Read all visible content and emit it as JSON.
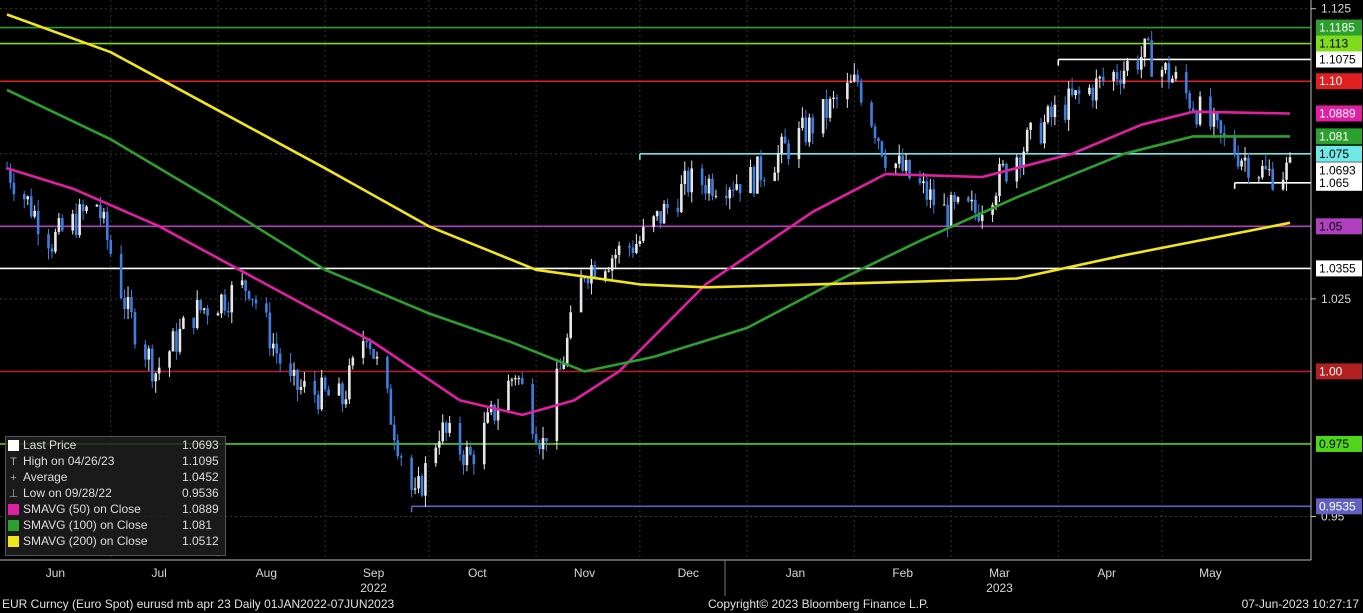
{
  "chart_data": {
    "type": "candlestick",
    "title": "",
    "xlabel": "",
    "ylabel": "",
    "ylim": [
      0.935,
      1.128
    ],
    "y_ticks": [
      "1.125",
      "1.025",
      "0.95"
    ],
    "x_ticks": [
      "Jun",
      "Jul",
      "Aug",
      "Sep",
      "Oct",
      "Nov",
      "Dec",
      "Jan",
      "Feb",
      "Mar",
      "Apr",
      "May"
    ],
    "year_labels": [
      "2022",
      "2023"
    ],
    "price_path": [
      [
        "2022-06-01",
        1.07
      ],
      [
        "2022-06-14",
        1.045
      ],
      [
        "2022-06-27",
        1.058
      ],
      [
        "2022-07-06",
        1.02
      ],
      [
        "2022-07-14",
        1.0
      ],
      [
        "2022-07-25",
        1.02
      ],
      [
        "2022-08-10",
        1.03
      ],
      [
        "2022-08-22",
        0.995
      ],
      [
        "2022-09-06",
        0.99
      ],
      [
        "2022-09-13",
        1.015
      ],
      [
        "2022-09-27",
        0.955
      ],
      [
        "2022-10-04",
        0.98
      ],
      [
        "2022-10-13",
        0.97
      ],
      [
        "2022-10-26",
        1.0
      ],
      [
        "2022-11-03",
        0.975
      ],
      [
        "2022-11-15",
        1.035
      ],
      [
        "2022-12-01",
        1.045
      ],
      [
        "2022-12-15",
        1.065
      ],
      [
        "2023-01-02",
        1.066
      ],
      [
        "2023-01-20",
        1.085
      ],
      [
        "2023-02-02",
        1.1
      ],
      [
        "2023-02-10",
        1.075
      ],
      [
        "2023-02-27",
        1.055
      ],
      [
        "2023-03-08",
        1.055
      ],
      [
        "2023-03-20",
        1.075
      ],
      [
        "2023-04-01",
        1.09
      ],
      [
        "2023-04-14",
        1.1
      ],
      [
        "2023-04-26",
        1.1095
      ],
      [
        "2023-05-05",
        1.1
      ],
      [
        "2023-05-18",
        1.08
      ],
      [
        "2023-05-31",
        1.068
      ],
      [
        "2023-06-07",
        1.0693
      ]
    ],
    "series": [
      {
        "name": "SMAVG (50)  on Close",
        "color": "#e11fa3",
        "points": [
          [
            "2022-06-01",
            1.07
          ],
          [
            "2022-06-20",
            1.063
          ],
          [
            "2022-07-15",
            1.05
          ],
          [
            "2022-08-15",
            1.03
          ],
          [
            "2022-09-15",
            1.01
          ],
          [
            "2022-10-10",
            0.99
          ],
          [
            "2022-10-28",
            0.985
          ],
          [
            "2022-11-12",
            0.99
          ],
          [
            "2022-11-25",
            1.0
          ],
          [
            "2022-12-20",
            1.03
          ],
          [
            "2023-01-20",
            1.055
          ],
          [
            "2023-02-10",
            1.068
          ],
          [
            "2023-03-10",
            1.067
          ],
          [
            "2023-04-05",
            1.075
          ],
          [
            "2023-04-25",
            1.085
          ],
          [
            "2023-05-10",
            1.0895
          ],
          [
            "2023-06-07",
            1.0889
          ]
        ]
      },
      {
        "name": "SMAVG (100)  on Close",
        "color": "#2ca02c",
        "points": [
          [
            "2022-06-01",
            1.097
          ],
          [
            "2022-07-01",
            1.08
          ],
          [
            "2022-08-01",
            1.058
          ],
          [
            "2022-09-01",
            1.035
          ],
          [
            "2022-10-01",
            1.02
          ],
          [
            "2022-10-25",
            1.01
          ],
          [
            "2022-11-15",
            1.0
          ],
          [
            "2022-12-05",
            1.005
          ],
          [
            "2023-01-01",
            1.015
          ],
          [
            "2023-01-25",
            1.03
          ],
          [
            "2023-02-20",
            1.045
          ],
          [
            "2023-03-20",
            1.06
          ],
          [
            "2023-04-20",
            1.075
          ],
          [
            "2023-05-10",
            1.081
          ],
          [
            "2023-06-07",
            1.081
          ]
        ]
      },
      {
        "name": "SMAVG (200)  on Close",
        "color": "#f2e61a",
        "points": [
          [
            "2022-06-01",
            1.123
          ],
          [
            "2022-07-01",
            1.11
          ],
          [
            "2022-08-01",
            1.09
          ],
          [
            "2022-09-01",
            1.07
          ],
          [
            "2022-10-01",
            1.05
          ],
          [
            "2022-11-01",
            1.035
          ],
          [
            "2022-12-01",
            1.03
          ],
          [
            "2022-12-20",
            1.029
          ],
          [
            "2023-01-20",
            1.03
          ],
          [
            "2023-02-20",
            1.031
          ],
          [
            "2023-03-20",
            1.032
          ],
          [
            "2023-04-20",
            1.04
          ],
          [
            "2023-05-20",
            1.047
          ],
          [
            "2023-06-07",
            1.0512
          ]
        ]
      }
    ],
    "horizontal_lines": [
      {
        "value": 1.1185,
        "label": "1.1185",
        "color": "#2ca02c"
      },
      {
        "value": 1.113,
        "label": "1.113",
        "color": "#7fdc1a"
      },
      {
        "value": 1.1075,
        "label": "1.1075",
        "color": "#ffffff",
        "start": "2023-04-01"
      },
      {
        "value": 1.1,
        "label": "1.10",
        "color": "#e02020"
      },
      {
        "value": 1.075,
        "label": "1.075",
        "color": "#6fe8e8",
        "start": "2022-12-01"
      },
      {
        "value": 1.065,
        "label": "1.065",
        "color": "#ffffff",
        "start": "2023-05-22"
      },
      {
        "value": 1.05,
        "label": "1.05",
        "color": "#b040c0"
      },
      {
        "value": 1.0355,
        "label": "1.0355",
        "color": "#ffffff"
      },
      {
        "value": 1.0,
        "label": "1.00",
        "color": "#b02020"
      },
      {
        "value": 0.975,
        "label": "0.975",
        "color": "#4fd61a"
      },
      {
        "value": 0.9535,
        "label": "0.9535",
        "color": "#6060c0",
        "start": "2022-09-26"
      }
    ],
    "right_badges": [
      {
        "label": "1.0889",
        "value": 1.0889,
        "color": "#e11fa3"
      },
      {
        "label": "1.081",
        "value": 1.081,
        "color": "#2ca02c"
      },
      {
        "label": "1.0693",
        "value": 1.0693,
        "color": "#ffffff"
      }
    ],
    "legend": {
      "placement": "bottom-left",
      "rows": [
        {
          "glyph": "square",
          "color": "#ffffff",
          "label": "Last Price",
          "value": "1.0693"
        },
        {
          "glyph": "T",
          "color": "#aaaaaa",
          "label": "High on 04/26/23",
          "value": "1.1095"
        },
        {
          "glyph": "+",
          "color": "#aaaaaa",
          "label": "Average",
          "value": "1.0452"
        },
        {
          "glyph": "⊥",
          "color": "#aaaaaa",
          "label": "Low on 09/28/22",
          "value": "0.9536"
        },
        {
          "glyph": "square",
          "color": "#e11fa3",
          "label": "SMAVG (50)  on Close",
          "value": "1.0889"
        },
        {
          "glyph": "square",
          "color": "#2ca02c",
          "label": "SMAVG (100)  on Close",
          "value": "1.081"
        },
        {
          "glyph": "square",
          "color": "#f2e61a",
          "label": "SMAVG (200)  on Close",
          "value": "1.0512"
        }
      ]
    }
  },
  "footer": {
    "left": "EUR Curncy (Euro Spot) eurusd mb apr 23  Daily 01JAN2022-07JUN2023",
    "center": "Copyright© 2023 Bloomberg Finance L.P.",
    "right": "07-Jun-2023 10:27:17"
  }
}
